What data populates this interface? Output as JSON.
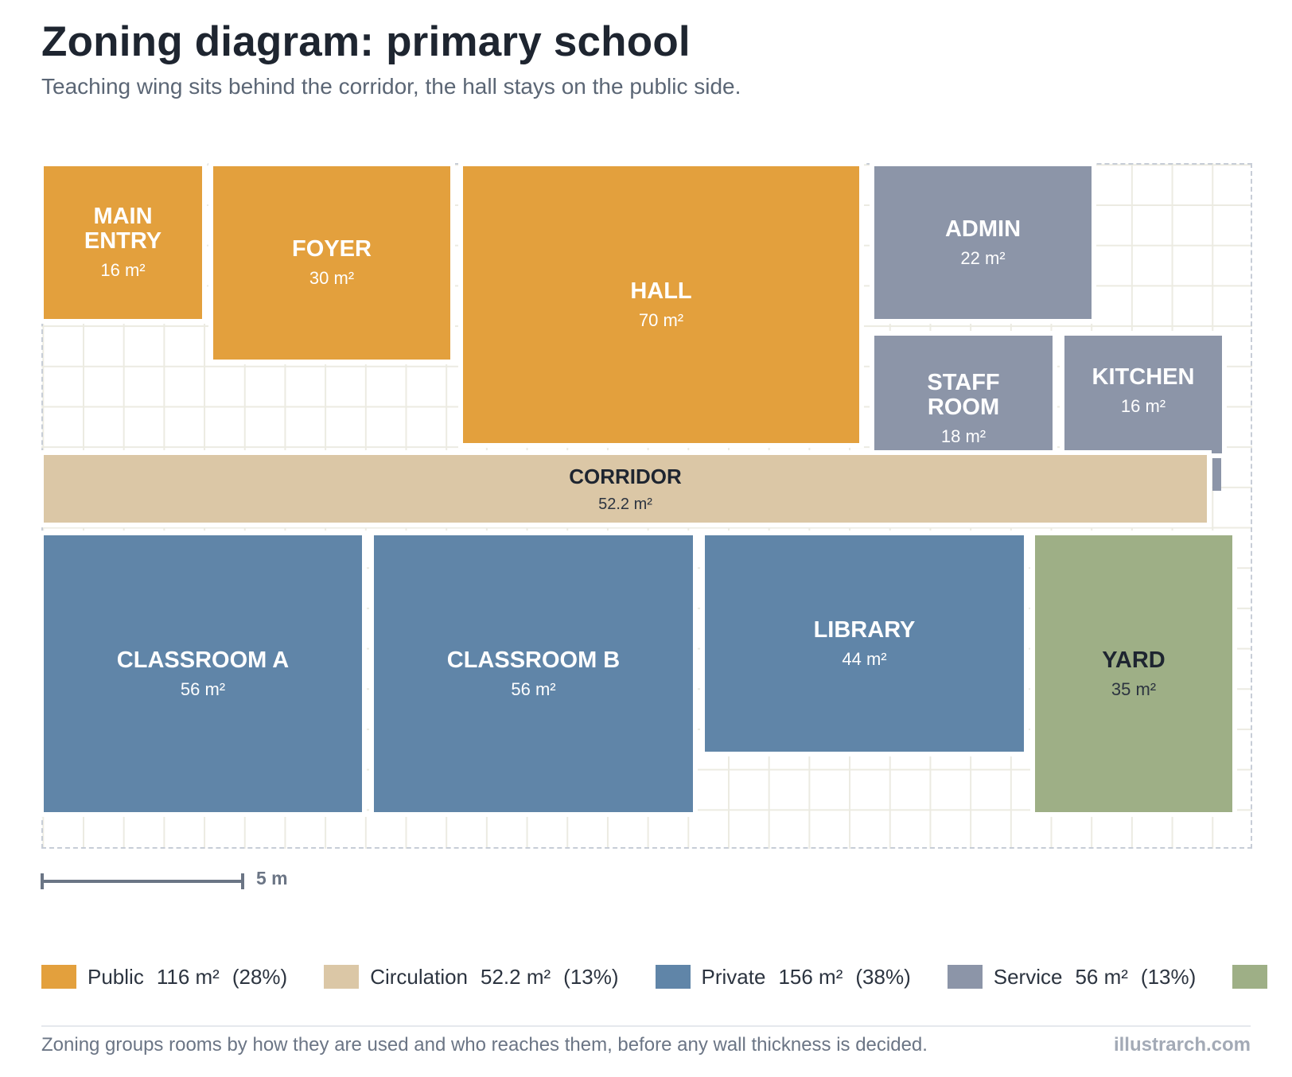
{
  "title": "Zoning diagram: primary school",
  "subtitle": "Teaching wing sits behind the corridor, the hall stays on the public side.",
  "zone_colors": {
    "public": "#e3a03d",
    "circulation": "#dbc7a6",
    "private": "#6085a8",
    "service": "#8c95a8",
    "outdoor": "#9eaf86"
  },
  "rooms": [
    {
      "name": "MAIN\nENTRY",
      "area": "16 m²",
      "zone": "public"
    },
    {
      "name": "FOYER",
      "area": "30 m²",
      "zone": "public"
    },
    {
      "name": "HALL",
      "area": "70 m²",
      "zone": "public"
    },
    {
      "name": "ADMIN",
      "area": "22 m²",
      "zone": "service"
    },
    {
      "name": "STAFF\nROOM",
      "area": "18 m²",
      "zone": "service"
    },
    {
      "name": "KITCHEN",
      "area": "16 m²",
      "zone": "service"
    },
    {
      "name": "CORRIDOR",
      "area": "52.2 m²",
      "zone": "circulation"
    },
    {
      "name": "CLASSROOM A",
      "area": "56 m²",
      "zone": "private"
    },
    {
      "name": "CLASSROOM B",
      "area": "56 m²",
      "zone": "private"
    },
    {
      "name": "LIBRARY",
      "area": "44 m²",
      "zone": "private"
    },
    {
      "name": "YARD",
      "area": "35 m²",
      "zone": "outdoor"
    }
  ],
  "scale": {
    "label": "5 m"
  },
  "legend": [
    {
      "zone": "Public",
      "area": "116 m²",
      "pct": "(28%)",
      "color": "#e3a03d"
    },
    {
      "zone": "Circulation",
      "area": "52.2 m²",
      "pct": "(13%)",
      "color": "#dbc7a6"
    },
    {
      "zone": "Private",
      "area": "156 m²",
      "pct": "(38%)",
      "color": "#6085a8"
    },
    {
      "zone": "Service",
      "area": "56 m²",
      "pct": "(13%)",
      "color": "#8c95a8"
    },
    {
      "zone": "",
      "area": "",
      "pct": "",
      "color": "#9eaf86"
    }
  ],
  "footnote": "Zoning groups rooms by how they are used and who reaches them, before any wall thickness is decided.",
  "credit": "illustrarch.com"
}
